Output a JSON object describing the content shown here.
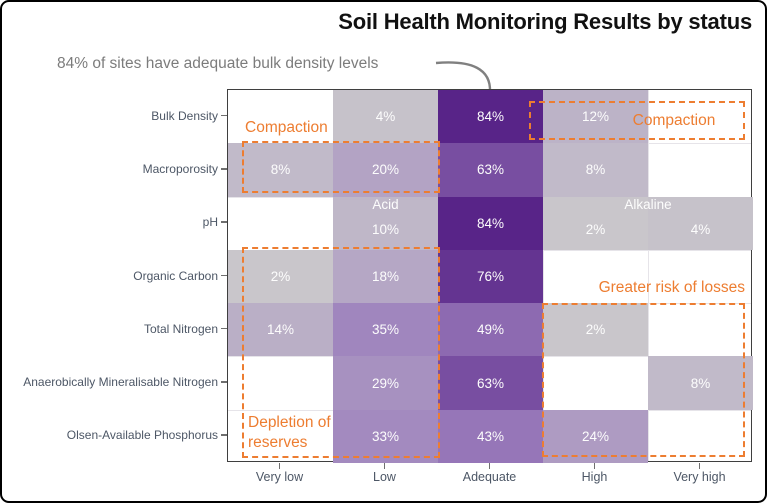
{
  "figure": {
    "title": "Soil Health Monitoring Results by status",
    "subtitle": "84% of sites have adequate bulk density levels"
  },
  "colors": {
    "accent_orange": "#ED7D31",
    "axis_text": "#4d5766",
    "subtitle_gray": "#7c7c7c",
    "panel_border": "#3f3f3f",
    "gridline": "#e6e4e9",
    "cell_text": "#fdfdfd",
    "arrow_gray": "#808080",
    "heatmap_low": "#cbcacc",
    "heatmap_mid": "#9a7cbc",
    "heatmap_high": "#582488"
  },
  "chart_data": {
    "type": "heatmap",
    "title": "Soil Health Monitoring Results by status",
    "subtitle": "84% of sites have adequate bulk density levels",
    "x_categories": [
      "Very low",
      "Low",
      "Adequate",
      "High",
      "Very high"
    ],
    "value_unit": "%",
    "xlabel": "",
    "ylabel": "",
    "grid": true,
    "legend": "none",
    "rows": [
      {
        "label": "Bulk Density",
        "values": [
          null,
          4,
          84,
          12,
          null
        ]
      },
      {
        "label": "Macroporosity",
        "values": [
          8,
          20,
          63,
          8,
          null
        ]
      },
      {
        "label": "pH",
        "values": [
          null,
          10,
          84,
          2,
          4
        ]
      },
      {
        "label": "Organic Carbon",
        "values": [
          2,
          18,
          76,
          null,
          null
        ]
      },
      {
        "label": "Total Nitrogen",
        "values": [
          14,
          35,
          49,
          2,
          null
        ]
      },
      {
        "label": "Anaerobically Mineralisable Nitrogen",
        "values": [
          null,
          29,
          63,
          null,
          8
        ]
      },
      {
        "label": "Olsen-Available Phosphorus",
        "values": [
          null,
          33,
          43,
          24,
          null
        ]
      }
    ],
    "color_scale_stops": [
      {
        "value": 0,
        "color": "#cbcacc"
      },
      {
        "value": 40,
        "color": "#9a7cbc"
      },
      {
        "value": 84,
        "color": "#582488"
      }
    ],
    "low_aligned_cells": [
      {
        "row": 2,
        "col": 1
      },
      {
        "row": 2,
        "col": 3
      },
      {
        "row": 2,
        "col": 4
      }
    ],
    "annotations": [
      {
        "label": "Compaction",
        "target": "Bulk Density High / Very high"
      },
      {
        "label": "Compaction",
        "target": "Macroporosity Very low / Low"
      },
      {
        "label": "Acid",
        "target": "pH Low"
      },
      {
        "label": "Alkaline",
        "target": "pH High / Very high"
      },
      {
        "label": "Greater risk of losses",
        "target": "Nitrogen & Phosphorus High / Very high"
      },
      {
        "label": "Depletion of reserves",
        "target": "Very low / Low nutrient rows"
      }
    ]
  },
  "annotation_labels": {
    "compaction_left": "Compaction",
    "compaction_right": "Compaction",
    "acid": "Acid",
    "alkaline": "Alkaline",
    "greater_risk": "Greater risk of losses",
    "depletion": "Depletion of reserves"
  }
}
